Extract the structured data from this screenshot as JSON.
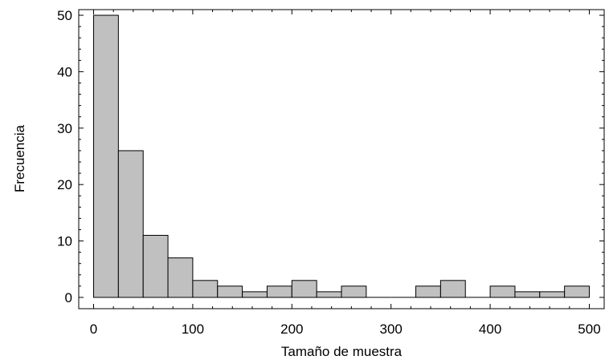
{
  "chart_data": {
    "type": "bar",
    "title": "",
    "xlabel": "Tamaño de muestra",
    "ylabel": "Frecuencia",
    "bin_width": 25,
    "xlim": [
      -15,
      515
    ],
    "ylim": [
      -2,
      51
    ],
    "xticks": [
      0,
      100,
      200,
      300,
      400,
      500
    ],
    "yticks": [
      0,
      10,
      20,
      30,
      40,
      50
    ],
    "bins": [
      {
        "start": 0,
        "end": 25,
        "value": 50
      },
      {
        "start": 25,
        "end": 50,
        "value": 26
      },
      {
        "start": 50,
        "end": 75,
        "value": 11
      },
      {
        "start": 75,
        "end": 100,
        "value": 7
      },
      {
        "start": 100,
        "end": 125,
        "value": 3
      },
      {
        "start": 125,
        "end": 150,
        "value": 2
      },
      {
        "start": 150,
        "end": 175,
        "value": 1
      },
      {
        "start": 175,
        "end": 200,
        "value": 2
      },
      {
        "start": 200,
        "end": 225,
        "value": 3
      },
      {
        "start": 225,
        "end": 250,
        "value": 1
      },
      {
        "start": 250,
        "end": 275,
        "value": 2
      },
      {
        "start": 275,
        "end": 300,
        "value": 0
      },
      {
        "start": 300,
        "end": 325,
        "value": 0
      },
      {
        "start": 325,
        "end": 350,
        "value": 2
      },
      {
        "start": 350,
        "end": 375,
        "value": 3
      },
      {
        "start": 375,
        "end": 400,
        "value": 0
      },
      {
        "start": 400,
        "end": 425,
        "value": 2
      },
      {
        "start": 425,
        "end": 450,
        "value": 1
      },
      {
        "start": 450,
        "end": 475,
        "value": 1
      },
      {
        "start": 475,
        "end": 500,
        "value": 2
      }
    ],
    "bar_color": "#c0c0c0",
    "bar_edge_color": "#000000",
    "grid": false,
    "legend": "none"
  }
}
